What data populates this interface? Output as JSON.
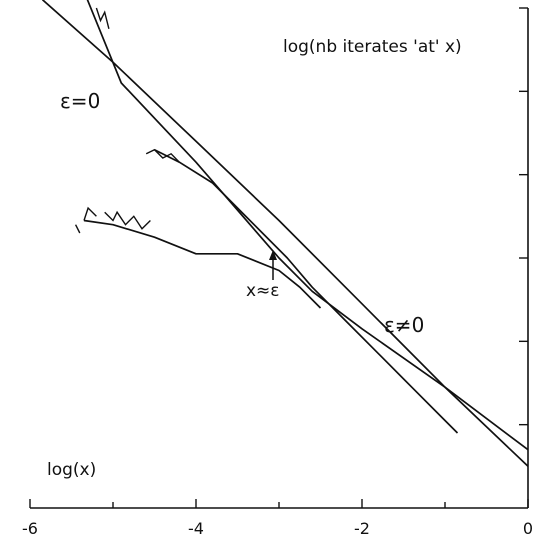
{
  "chart_data": {
    "type": "line",
    "title": "",
    "xlabel": "log(x)",
    "ylabel": "log(nb iterates 'at' x)",
    "xlim": [
      -6,
      0
    ],
    "ylim": [
      0,
      6
    ],
    "x_ticks": [
      "-6",
      "-4",
      "-2",
      "0"
    ],
    "y_ticks_labeled": false,
    "grid": false,
    "legend": "none",
    "annotations": {
      "eps_zero": "ε=0",
      "eps_nonzero": "ε≠0",
      "crossover": "x≈ε"
    },
    "crossover_x": -3.0,
    "series": [
      {
        "x": [
          -5.85,
          -5.0,
          -4.0,
          -3.0,
          -2.0,
          -1.0,
          0.0
        ],
        "y": [
          6.1,
          5.35,
          4.4,
          3.45,
          2.45,
          1.45,
          0.5
        ]
      },
      {
        "x": [
          -5.35,
          -4.9,
          -4.0,
          -3.0,
          -2.6,
          -2.0,
          -1.0,
          0.0
        ],
        "y": [
          6.2,
          5.1,
          4.15,
          3.0,
          2.6,
          2.15,
          1.45,
          0.7
        ]
      },
      {
        "x": [
          -4.5,
          -4.2,
          -3.8,
          -3.5,
          -3.2,
          -2.9,
          -2.6,
          -2.2,
          -1.8,
          -1.4,
          -1.0,
          -0.85
        ],
        "y": [
          4.3,
          4.15,
          3.9,
          3.6,
          3.3,
          3.0,
          2.65,
          2.25,
          1.85,
          1.45,
          1.05,
          0.9
        ]
      },
      {
        "x": [
          -5.35,
          -5.0,
          -4.5,
          -4.0,
          -3.5,
          -3.0,
          -2.75,
          -2.5
        ],
        "y": [
          3.45,
          3.4,
          3.25,
          3.05,
          3.05,
          2.85,
          2.65,
          2.4
        ]
      }
    ]
  }
}
